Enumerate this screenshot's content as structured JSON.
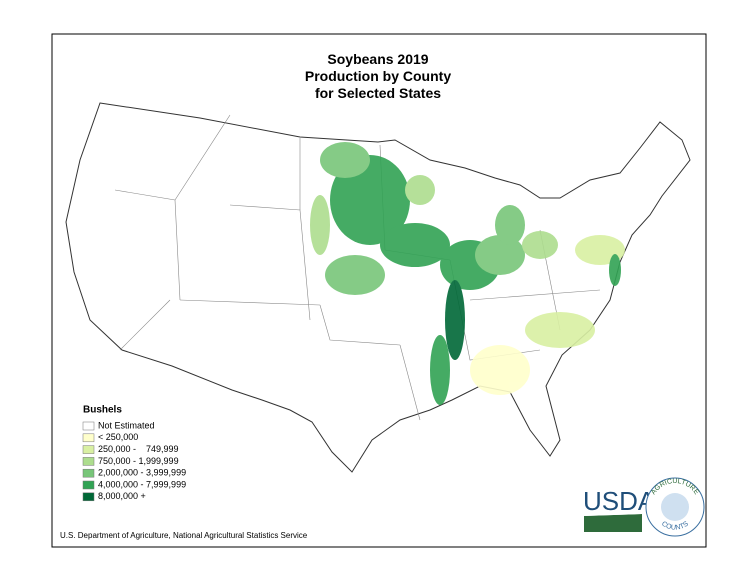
{
  "title": [
    "Soybeans 2019",
    "Production by County",
    "for Selected States"
  ],
  "legend": {
    "title": "Bushels",
    "items": [
      {
        "label": "Not Estimated",
        "color": "#ffffff"
      },
      {
        "label": "< 250,000",
        "color": "#ffffcc"
      },
      {
        "label": "250,000 -    749,999",
        "color": "#d9f0a3"
      },
      {
        "label": "750,000 - 1,999,999",
        "color": "#addd8e"
      },
      {
        "label": "2,000,000 - 3,999,999",
        "color": "#78c679"
      },
      {
        "label": "4,000,000 - 7,999,999",
        "color": "#31a354"
      },
      {
        "label": "8,000,000 +",
        "color": "#006837"
      }
    ]
  },
  "footer": "U.S. Department of Agriculture, National Agricultural Statistics Service",
  "logo": {
    "agency": "USDA",
    "ring_top": "AGRICULTURE",
    "ring_bottom": "COUNTS"
  }
}
